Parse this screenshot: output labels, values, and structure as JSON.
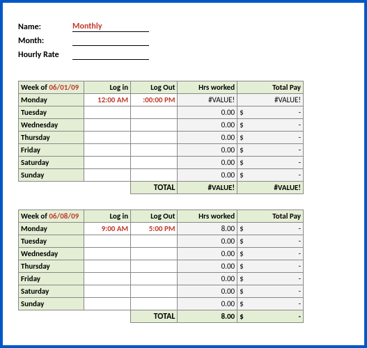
{
  "header": {
    "name_label": "Name:",
    "name_value": "Monthly",
    "month_label": "Month:",
    "month_value": "",
    "rate_label": "Hourly Rate",
    "rate_value": ""
  },
  "columns": {
    "login": "Log in",
    "logout": "Log Out",
    "hrs": "Hrs worked",
    "pay": "Total Pay"
  },
  "week_prefix": "Week of ",
  "total_label": "TOTAL",
  "currency": "$",
  "dash": "-",
  "weeks": [
    {
      "date": "06/01/09",
      "rows": [
        {
          "day": "Monday",
          "login": "12:00 AM",
          "logout": ":00:00 PM",
          "hrs": "#VALUE!",
          "pay_val": "#VALUE!",
          "pay_mode": "error"
        },
        {
          "day": "Tuesday",
          "login": "",
          "logout": "",
          "hrs": "0.00",
          "pay_val": "",
          "pay_mode": "dash"
        },
        {
          "day": "Wednesday",
          "login": "",
          "logout": "",
          "hrs": "0.00",
          "pay_val": "",
          "pay_mode": "dash"
        },
        {
          "day": "Thursday",
          "login": "",
          "logout": "",
          "hrs": "0.00",
          "pay_val": "",
          "pay_mode": "dash"
        },
        {
          "day": "Friday",
          "login": "",
          "logout": "",
          "hrs": "0.00",
          "pay_val": "",
          "pay_mode": "dash"
        },
        {
          "day": "Saturday",
          "login": "",
          "logout": "",
          "hrs": "0.00",
          "pay_val": "",
          "pay_mode": "dash"
        },
        {
          "day": "Sunday",
          "login": "",
          "logout": "",
          "hrs": "0.00",
          "pay_val": "",
          "pay_mode": "dash"
        }
      ],
      "total_hrs": "#VALUE!",
      "total_pay": "#VALUE!",
      "total_pay_mode": "error"
    },
    {
      "date": "06/08/09",
      "rows": [
        {
          "day": "Monday",
          "login": "9:00 AM",
          "logout": "5:00 PM",
          "hrs": "8.00",
          "pay_val": "",
          "pay_mode": "dash"
        },
        {
          "day": "Tuesday",
          "login": "",
          "logout": "",
          "hrs": "0.00",
          "pay_val": "",
          "pay_mode": "dash"
        },
        {
          "day": "Wednesday",
          "login": "",
          "logout": "",
          "hrs": "0.00",
          "pay_val": "",
          "pay_mode": "dash"
        },
        {
          "day": "Thursday",
          "login": "",
          "logout": "",
          "hrs": "0.00",
          "pay_val": "",
          "pay_mode": "dash"
        },
        {
          "day": "Friday",
          "login": "",
          "logout": "",
          "hrs": "0.00",
          "pay_val": "",
          "pay_mode": "dash"
        },
        {
          "day": "Saturday",
          "login": "",
          "logout": "",
          "hrs": "0.00",
          "pay_val": "",
          "pay_mode": "dash"
        },
        {
          "day": "Sunday",
          "login": "",
          "logout": "",
          "hrs": "0.00",
          "pay_val": "",
          "pay_mode": "dash"
        }
      ],
      "total_hrs": "8.00",
      "total_pay": "",
      "total_pay_mode": "dash"
    }
  ]
}
